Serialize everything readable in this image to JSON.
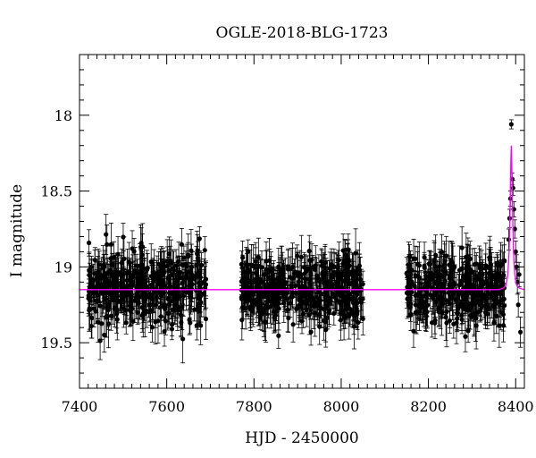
{
  "chart_data": {
    "type": "scatter",
    "title": "OGLE-2018-BLG-1723",
    "xlabel": "HJD - 2450000",
    "ylabel": "I magnitude",
    "xlim": [
      7400,
      8420
    ],
    "ylim": [
      19.8,
      17.6
    ],
    "y_inverted": true,
    "x_ticks": [
      7400,
      7600,
      7800,
      8000,
      8200,
      8400
    ],
    "x_tick_labels": [
      "7400",
      "7600",
      "7800",
      "8000",
      "8200",
      "8400"
    ],
    "y_ticks": [
      18,
      18.5,
      19,
      19.5
    ],
    "y_tick_labels": [
      "18",
      "18.5",
      "19",
      "19.5"
    ],
    "grid": false,
    "legend": "none",
    "colors": {
      "data": "#000000",
      "model": "#ff00ff"
    },
    "baseline_mag": 19.15,
    "observing_seasons": [
      {
        "start": 7420,
        "end": 7690,
        "mean_mag": 19.13,
        "scatter": 0.22
      },
      {
        "start": 7770,
        "end": 8050,
        "mean_mag": 19.15,
        "scatter": 0.2
      },
      {
        "start": 8150,
        "end": 8375,
        "mean_mag": 19.15,
        "scatter": 0.2
      }
    ],
    "peak_points": [
      {
        "x": 8390,
        "y": 18.06,
        "err": 0.03
      },
      {
        "x": 8392,
        "y": 18.42,
        "err": 0.04
      },
      {
        "x": 8394,
        "y": 18.48,
        "err": 0.05
      },
      {
        "x": 8388,
        "y": 18.55,
        "err": 0.05
      },
      {
        "x": 8396,
        "y": 18.62,
        "err": 0.05
      },
      {
        "x": 8386,
        "y": 18.68,
        "err": 0.06
      },
      {
        "x": 8398,
        "y": 18.75,
        "err": 0.06
      },
      {
        "x": 8384,
        "y": 18.82,
        "err": 0.07
      },
      {
        "x": 8400,
        "y": 18.9,
        "err": 0.07
      },
      {
        "x": 8402,
        "y": 19.0,
        "err": 0.08
      },
      {
        "x": 8404,
        "y": 19.1,
        "err": 0.08
      },
      {
        "x": 8406,
        "y": 19.25,
        "err": 0.08
      },
      {
        "x": 8408,
        "y": 19.05,
        "err": 0.08
      },
      {
        "x": 8411,
        "y": 19.43,
        "err": 0.1
      }
    ],
    "model_curve": {
      "name": "",
      "peak_x": 8390,
      "peak_mag": 18.2,
      "baseline_mag": 19.15,
      "x": [
        7400,
        8300,
        8360,
        8372,
        8378,
        8382,
        8385,
        8387,
        8389,
        8390,
        8391,
        8393,
        8395,
        8398,
        8402,
        8408,
        8420
      ],
      "y": [
        19.15,
        19.15,
        19.15,
        19.14,
        19.12,
        19.05,
        18.9,
        18.65,
        18.3,
        18.2,
        18.3,
        18.65,
        18.9,
        19.05,
        19.12,
        19.14,
        19.15
      ]
    }
  }
}
